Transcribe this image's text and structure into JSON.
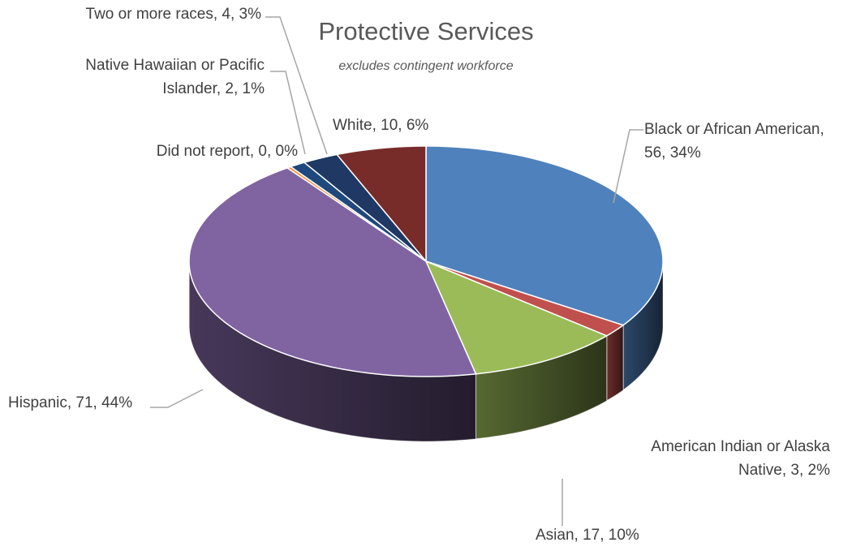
{
  "chart_data": {
    "type": "pie",
    "title": "Protective Services",
    "subtitle": "excludes contingent workforce",
    "slices": [
      {
        "name": "Black or African American",
        "value": 56,
        "percent": "34%",
        "color": "#4f81bd",
        "label_lines": [
          "Black or African American,",
          "56, 34%"
        ]
      },
      {
        "name": "American Indian or Alaska Native",
        "value": 3,
        "percent": "2%",
        "color": "#c0504d",
        "label_lines": [
          "American Indian or Alaska",
          "Native, 3, 2%"
        ]
      },
      {
        "name": "Asian",
        "value": 17,
        "percent": "10%",
        "color": "#9bbb59",
        "label_lines": [
          "Asian, 17, 10%"
        ]
      },
      {
        "name": "Hispanic",
        "value": 71,
        "percent": "44%",
        "color": "#8064a2",
        "label_lines": [
          "Hispanic, 71, 44%"
        ]
      },
      {
        "name": "Did not report",
        "value": 0,
        "percent": "0%",
        "color": "#f79646",
        "label_lines": [
          "Did not report, 0, 0%"
        ]
      },
      {
        "name": "Native Hawaiian or Pacific Islander",
        "value": 2,
        "percent": "1%",
        "color": "#1f497d",
        "label_lines": [
          "Native Hawaiian or Pacific",
          "Islander, 2, 1%"
        ]
      },
      {
        "name": "Two or more races",
        "value": 4,
        "percent": "3%",
        "color": "#1f3864",
        "label_lines": [
          "Two or more races, 4, 3%"
        ]
      },
      {
        "name": "White",
        "value": 10,
        "percent": "6%",
        "color": "#772c2a",
        "label_lines": [
          "White, 10, 6%"
        ]
      }
    ]
  }
}
